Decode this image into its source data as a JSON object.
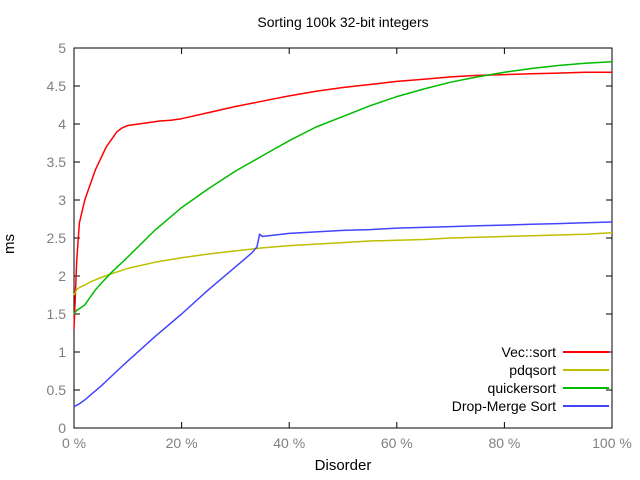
{
  "chart_data": {
    "type": "line",
    "title": "Sorting 100k 32-bit integers",
    "xlabel": "Disorder",
    "ylabel": "ms",
    "xlim": [
      0,
      100
    ],
    "ylim": [
      0,
      5
    ],
    "x_ticks": [
      0,
      20,
      40,
      60,
      80,
      100
    ],
    "x_tick_labels": [
      "0 %",
      "20 %",
      "40 %",
      "60 %",
      "80 %",
      "100 %"
    ],
    "y_ticks": [
      0,
      0.5,
      1,
      1.5,
      2,
      2.5,
      3,
      3.5,
      4,
      4.5,
      5
    ],
    "y_tick_labels": [
      "0",
      "0.5",
      "1",
      "1.5",
      "2",
      "2.5",
      "3",
      "3.5",
      "4",
      "4.5",
      "5"
    ],
    "grid": false,
    "legend_position": "bottom-right",
    "series": [
      {
        "name": "Vec::sort",
        "color": "#ff0000",
        "x": [
          0,
          0.5,
          1,
          2,
          3,
          4,
          5,
          6,
          7,
          8,
          9,
          10,
          12,
          14,
          16,
          18,
          20,
          25,
          30,
          35,
          40,
          45,
          50,
          55,
          60,
          65,
          70,
          75,
          80,
          85,
          90,
          95,
          100
        ],
        "y": [
          1.3,
          2.2,
          2.7,
          3.0,
          3.2,
          3.4,
          3.55,
          3.7,
          3.8,
          3.9,
          3.95,
          3.98,
          4.0,
          4.02,
          4.04,
          4.05,
          4.07,
          4.15,
          4.23,
          4.3,
          4.37,
          4.43,
          4.48,
          4.52,
          4.56,
          4.59,
          4.62,
          4.64,
          4.65,
          4.66,
          4.67,
          4.68,
          4.68
        ]
      },
      {
        "name": "pdqsort",
        "color": "#bfbf00",
        "x": [
          0,
          0.5,
          1,
          2,
          3,
          4,
          5,
          7,
          10,
          15,
          20,
          25,
          30,
          35,
          40,
          45,
          50,
          55,
          60,
          65,
          70,
          75,
          80,
          85,
          90,
          95,
          100
        ],
        "y": [
          1.75,
          1.82,
          1.85,
          1.88,
          1.92,
          1.95,
          1.98,
          2.03,
          2.1,
          2.18,
          2.24,
          2.29,
          2.33,
          2.37,
          2.4,
          2.42,
          2.44,
          2.46,
          2.47,
          2.48,
          2.5,
          2.51,
          2.52,
          2.53,
          2.54,
          2.55,
          2.57
        ]
      },
      {
        "name": "quickersort",
        "color": "#00bb00",
        "x": [
          0,
          0.5,
          1,
          2,
          3,
          4,
          5,
          7,
          10,
          15,
          20,
          25,
          30,
          35,
          40,
          45,
          50,
          55,
          60,
          65,
          70,
          75,
          80,
          85,
          90,
          95,
          100
        ],
        "y": [
          1.5,
          1.55,
          1.57,
          1.62,
          1.72,
          1.82,
          1.9,
          2.05,
          2.25,
          2.6,
          2.9,
          3.15,
          3.38,
          3.58,
          3.78,
          3.96,
          4.1,
          4.24,
          4.36,
          4.46,
          4.55,
          4.62,
          4.68,
          4.73,
          4.77,
          4.8,
          4.82
        ]
      },
      {
        "name": "Drop-Merge Sort",
        "color": "#4444ff",
        "x": [
          0,
          0.5,
          1,
          2,
          3,
          5,
          8,
          10,
          15,
          20,
          25,
          30,
          33,
          34,
          34.5,
          35,
          40,
          45,
          50,
          55,
          60,
          65,
          70,
          75,
          80,
          85,
          90,
          95,
          100
        ],
        "y": [
          0.28,
          0.3,
          0.32,
          0.37,
          0.43,
          0.55,
          0.75,
          0.88,
          1.2,
          1.5,
          1.82,
          2.12,
          2.3,
          2.38,
          2.55,
          2.52,
          2.56,
          2.58,
          2.6,
          2.61,
          2.63,
          2.64,
          2.65,
          2.66,
          2.67,
          2.68,
          2.69,
          2.7,
          2.71
        ]
      }
    ]
  }
}
